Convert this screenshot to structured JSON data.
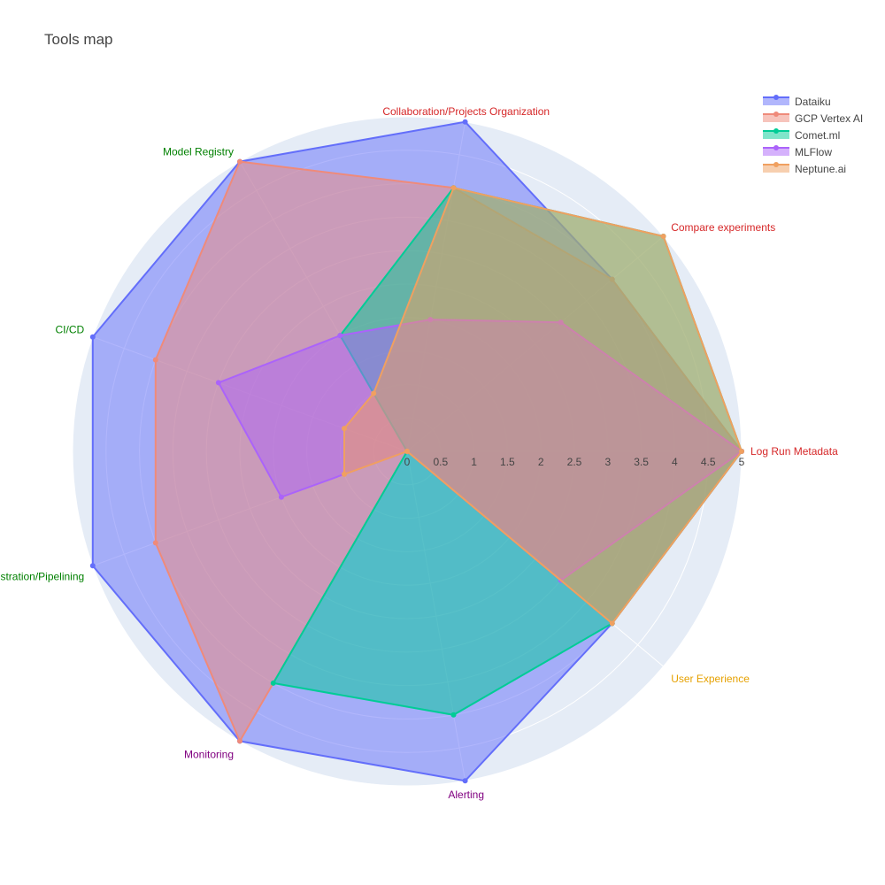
{
  "chart_data": {
    "type": "radar",
    "title": "Tools map",
    "categories": [
      {
        "label": "Log Run Metadata",
        "color": "#d62728"
      },
      {
        "label": "Compare experiments",
        "color": "#d62728"
      },
      {
        "label": "Collaboration/Projects Organization",
        "color": "#d62728"
      },
      {
        "label": "Model Registry",
        "color": "#008000"
      },
      {
        "label": "CI/CD",
        "color": "#008000"
      },
      {
        "label": "Orchestration/Pipelining",
        "color": "#008000"
      },
      {
        "label": "Monitoring",
        "color": "#800080"
      },
      {
        "label": "Alerting",
        "color": "#800080"
      },
      {
        "label": "User Experience",
        "color": "#e6a100"
      }
    ],
    "radial_range": [
      0,
      5
    ],
    "radial_ticks": [
      "0",
      "0.5",
      "1",
      "1.5",
      "2",
      "2.5",
      "3",
      "3.5",
      "4",
      "4.5",
      "5"
    ],
    "grid": true,
    "legend_position": "top-right",
    "series": [
      {
        "name": "Dataiku",
        "color": "#636efa",
        "values": [
          5,
          4,
          5,
          5,
          5,
          5,
          5,
          5,
          4
        ]
      },
      {
        "name": "GCP Vertex AI",
        "color": "#ef8a7a",
        "values": [
          5,
          4,
          4,
          5,
          4,
          4,
          5,
          0,
          4
        ]
      },
      {
        "name": "Comet.ml",
        "color": "#00cc96",
        "values": [
          5,
          5,
          4,
          2,
          0,
          0,
          4,
          4,
          4
        ]
      },
      {
        "name": "MLFlow",
        "color": "#ab63fa",
        "values": [
          5,
          3,
          2,
          2,
          3,
          2,
          0,
          0,
          3
        ]
      },
      {
        "name": "Neptune.ai",
        "color": "#f0a060",
        "values": [
          5,
          5,
          4,
          1,
          1,
          1,
          0,
          0,
          4
        ]
      }
    ]
  }
}
